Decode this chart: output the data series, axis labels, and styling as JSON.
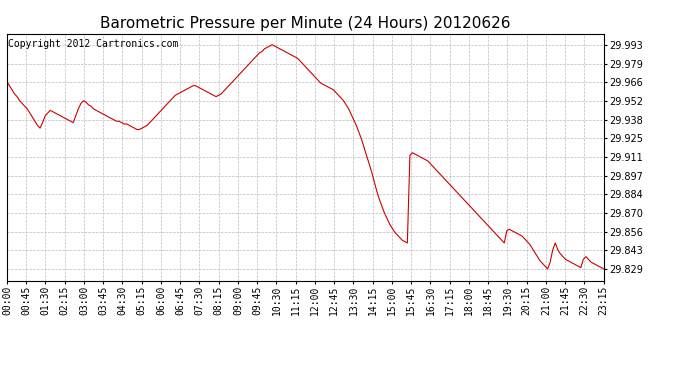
{
  "title": "Barometric Pressure per Minute (24 Hours) 20120626",
  "copyright_text": "Copyright 2012 Cartronics.com",
  "line_color": "#cc0000",
  "bg_color": "#ffffff",
  "grid_color": "#bbbbbb",
  "yticks": [
    29.829,
    29.843,
    29.856,
    29.87,
    29.884,
    29.897,
    29.911,
    29.925,
    29.938,
    29.952,
    29.966,
    29.979,
    29.993
  ],
  "ylim": [
    29.82,
    30.001
  ],
  "xtick_labels": [
    "00:00",
    "00:45",
    "01:30",
    "02:15",
    "03:00",
    "03:45",
    "04:30",
    "05:15",
    "06:00",
    "06:45",
    "07:30",
    "08:15",
    "09:00",
    "09:45",
    "10:30",
    "11:15",
    "12:00",
    "12:45",
    "13:30",
    "14:15",
    "15:00",
    "15:45",
    "16:30",
    "17:15",
    "18:00",
    "18:45",
    "19:30",
    "20:15",
    "21:00",
    "21:45",
    "22:30",
    "23:15"
  ],
  "title_fontsize": 11,
  "tick_fontsize": 7,
  "copyright_fontsize": 7,
  "pressure_data": [
    29.966,
    29.963,
    29.96,
    29.957,
    29.955,
    29.952,
    29.95,
    29.948,
    29.946,
    29.943,
    29.94,
    29.937,
    29.934,
    29.932,
    29.936,
    29.941,
    29.943,
    29.945,
    29.944,
    29.943,
    29.942,
    29.941,
    29.94,
    29.939,
    29.938,
    29.937,
    29.936,
    29.941,
    29.946,
    29.95,
    29.952,
    29.951,
    29.949,
    29.948,
    29.946,
    29.945,
    29.944,
    29.943,
    29.942,
    29.941,
    29.94,
    29.939,
    29.938,
    29.937,
    29.937,
    29.936,
    29.935,
    29.935,
    29.934,
    29.933,
    29.932,
    29.931,
    29.931,
    29.932,
    29.933,
    29.934,
    29.936,
    29.938,
    29.94,
    29.942,
    29.944,
    29.946,
    29.948,
    29.95,
    29.952,
    29.954,
    29.956,
    29.957,
    29.958,
    29.959,
    29.96,
    29.961,
    29.962,
    29.963,
    29.963,
    29.962,
    29.961,
    29.96,
    29.959,
    29.958,
    29.957,
    29.956,
    29.955,
    29.956,
    29.957,
    29.959,
    29.961,
    29.963,
    29.965,
    29.967,
    29.969,
    29.971,
    29.973,
    29.975,
    29.977,
    29.979,
    29.981,
    29.983,
    29.985,
    29.987,
    29.988,
    29.99,
    29.991,
    29.992,
    29.993,
    29.992,
    29.991,
    29.99,
    29.989,
    29.988,
    29.987,
    29.986,
    29.985,
    29.984,
    29.983,
    29.981,
    29.979,
    29.977,
    29.975,
    29.973,
    29.971,
    29.969,
    29.967,
    29.965,
    29.964,
    29.963,
    29.962,
    29.961,
    29.96,
    29.958,
    29.956,
    29.954,
    29.952,
    29.949,
    29.946,
    29.942,
    29.938,
    29.934,
    29.929,
    29.924,
    29.918,
    29.912,
    29.906,
    29.9,
    29.893,
    29.886,
    29.88,
    29.875,
    29.87,
    29.866,
    29.862,
    29.859,
    29.856,
    29.854,
    29.852,
    29.85,
    29.849,
    29.848,
    29.912,
    29.914,
    29.913,
    29.912,
    29.911,
    29.91,
    29.909,
    29.908,
    29.906,
    29.904,
    29.902,
    29.9,
    29.898,
    29.896,
    29.894,
    29.892,
    29.89,
    29.888,
    29.886,
    29.884,
    29.882,
    29.88,
    29.878,
    29.876,
    29.874,
    29.872,
    29.87,
    29.868,
    29.866,
    29.864,
    29.862,
    29.86,
    29.858,
    29.856,
    29.854,
    29.852,
    29.85,
    29.848,
    29.857,
    29.858,
    29.857,
    29.856,
    29.855,
    29.854,
    29.853,
    29.851,
    29.849,
    29.847,
    29.844,
    29.841,
    29.838,
    29.835,
    29.833,
    29.831,
    29.829,
    29.834,
    29.843,
    29.848,
    29.843,
    29.84,
    29.838,
    29.836,
    29.835,
    29.834,
    29.833,
    29.832,
    29.831,
    29.83,
    29.836,
    29.838,
    29.836,
    29.834,
    29.833,
    29.832,
    29.831,
    29.83,
    29.829
  ]
}
